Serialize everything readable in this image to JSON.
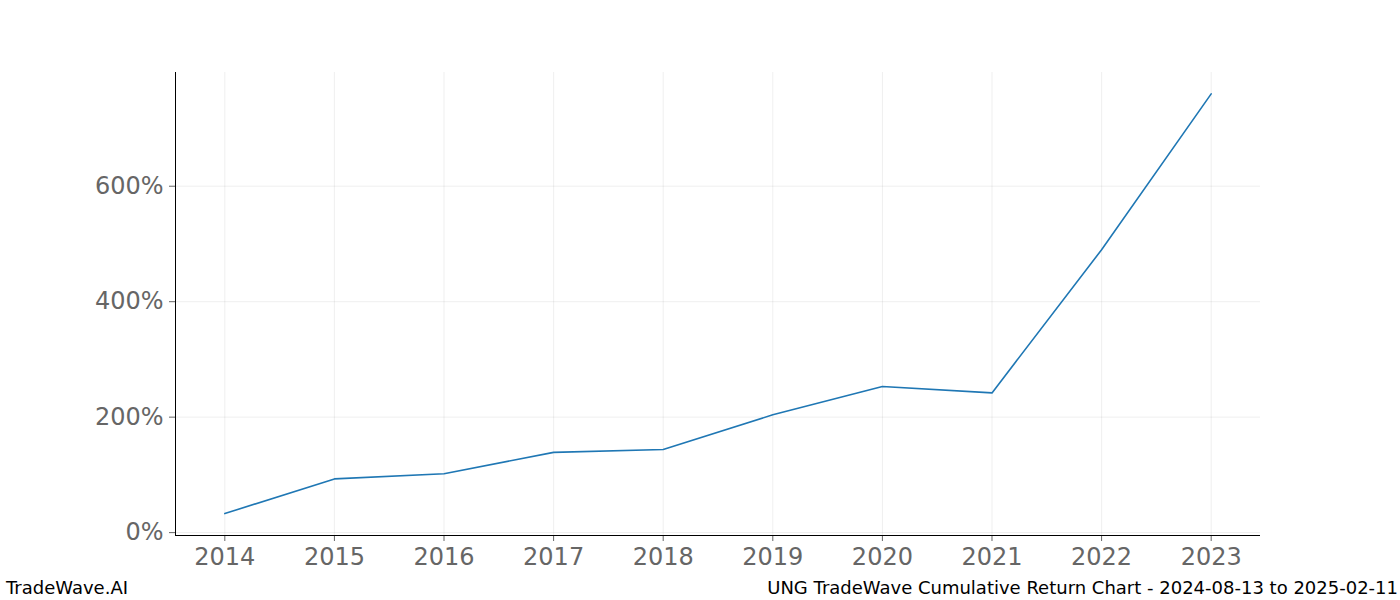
{
  "chart_data": {
    "type": "line",
    "title": "UNG TradeWave Cumulative Return Chart - 2024-08-13 to 2025-02-11",
    "caption": "TradeWave.AI",
    "x": [
      2014,
      2015,
      2016,
      2017,
      2018,
      2019,
      2020,
      2021,
      2022,
      2023
    ],
    "values": [
      33,
      93,
      102,
      139,
      144,
      204,
      253,
      242,
      490,
      760
    ],
    "color": "#1f77b4",
    "xlim": [
      2013.55,
      2023.45
    ],
    "xticks": [
      2014,
      2015,
      2016,
      2017,
      2018,
      2019,
      2020,
      2021,
      2022,
      2023
    ],
    "ylim": [
      -5,
      797
    ],
    "yticks": [
      {
        "value": 0,
        "label": "0%"
      },
      {
        "value": 200,
        "label": "200%"
      },
      {
        "value": 400,
        "label": "400%"
      },
      {
        "value": 600,
        "label": "600%"
      }
    ],
    "grid": true
  }
}
